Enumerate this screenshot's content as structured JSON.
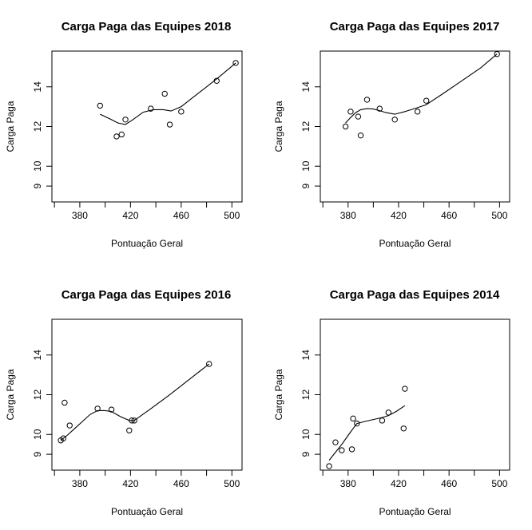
{
  "chart_data": [
    {
      "type": "scatter",
      "title": "Carga Paga das Equipes 2018",
      "xlabel": "Pontuação Geral",
      "ylabel": "Carga Paga",
      "xlim": [
        358,
        508
      ],
      "ylim": [
        8.2,
        15.8
      ],
      "xticks": [
        380,
        420,
        460,
        500
      ],
      "yticks": [
        9,
        10,
        12,
        14
      ],
      "points": [
        [
          396,
          13.05
        ],
        [
          409,
          11.5
        ],
        [
          413,
          11.6
        ],
        [
          416,
          12.35
        ],
        [
          436,
          12.9
        ],
        [
          447,
          13.65
        ],
        [
          451,
          12.1
        ],
        [
          460,
          12.75
        ],
        [
          488,
          14.3
        ],
        [
          503,
          15.2
        ]
      ],
      "smooth": [
        [
          396,
          12.62
        ],
        [
          404,
          12.38
        ],
        [
          410,
          12.18
        ],
        [
          416,
          12.1
        ],
        [
          422,
          12.35
        ],
        [
          430,
          12.72
        ],
        [
          438,
          12.85
        ],
        [
          446,
          12.85
        ],
        [
          452,
          12.78
        ],
        [
          460,
          13.0
        ],
        [
          470,
          13.5
        ],
        [
          480,
          14.0
        ],
        [
          490,
          14.5
        ],
        [
          503,
          15.2
        ]
      ]
    },
    {
      "type": "scatter",
      "title": "Carga Paga das Equipes 2017",
      "xlabel": "Pontuação Geral",
      "ylabel": "Carga Paga",
      "xlim": [
        358,
        508
      ],
      "ylim": [
        8.2,
        15.8
      ],
      "xticks": [
        380,
        420,
        460,
        500
      ],
      "yticks": [
        9,
        10,
        12,
        14
      ],
      "points": [
        [
          378,
          12.0
        ],
        [
          382,
          12.75
        ],
        [
          388,
          12.5
        ],
        [
          390,
          11.55
        ],
        [
          395,
          13.35
        ],
        [
          405,
          12.9
        ],
        [
          417,
          12.35
        ],
        [
          435,
          12.75
        ],
        [
          442,
          13.3
        ],
        [
          498,
          15.65
        ]
      ],
      "smooth": [
        [
          378,
          12.18
        ],
        [
          382,
          12.45
        ],
        [
          386,
          12.7
        ],
        [
          390,
          12.85
        ],
        [
          395,
          12.9
        ],
        [
          400,
          12.88
        ],
        [
          405,
          12.8
        ],
        [
          410,
          12.7
        ],
        [
          417,
          12.62
        ],
        [
          425,
          12.75
        ],
        [
          435,
          12.95
        ],
        [
          442,
          13.1
        ],
        [
          455,
          13.65
        ],
        [
          470,
          14.3
        ],
        [
          485,
          14.95
        ],
        [
          498,
          15.65
        ]
      ]
    },
    {
      "type": "scatter",
      "title": "Carga Paga das Equipes 2016",
      "xlabel": "Pontuação Geral",
      "ylabel": "Carga Paga",
      "xlim": [
        358,
        508
      ],
      "ylim": [
        8.2,
        15.8
      ],
      "xticks": [
        380,
        420,
        460,
        500
      ],
      "yticks": [
        9,
        10,
        12,
        14
      ],
      "points": [
        [
          365,
          9.7
        ],
        [
          367,
          9.8
        ],
        [
          368,
          11.6
        ],
        [
          372,
          10.45
        ],
        [
          394,
          11.3
        ],
        [
          405,
          11.25
        ],
        [
          419,
          10.2
        ],
        [
          421,
          10.7
        ],
        [
          423,
          10.7
        ],
        [
          482,
          13.55
        ]
      ],
      "smooth": [
        [
          365,
          9.7
        ],
        [
          370,
          9.95
        ],
        [
          376,
          10.3
        ],
        [
          382,
          10.65
        ],
        [
          388,
          11.0
        ],
        [
          394,
          11.2
        ],
        [
          400,
          11.2
        ],
        [
          405,
          11.15
        ],
        [
          412,
          10.9
        ],
        [
          419,
          10.7
        ],
        [
          423,
          10.7
        ],
        [
          435,
          11.25
        ],
        [
          450,
          11.95
        ],
        [
          465,
          12.7
        ],
        [
          482,
          13.55
        ]
      ]
    },
    {
      "type": "scatter",
      "title": "Carga Paga das Equipes 2014",
      "xlabel": "Pontuação Geral",
      "ylabel": "Carga Paga",
      "xlim": [
        358,
        508
      ],
      "ylim": [
        8.2,
        15.8
      ],
      "xticks": [
        380,
        420,
        460,
        500
      ],
      "yticks": [
        9,
        10,
        12,
        14
      ],
      "points": [
        [
          365,
          8.4
        ],
        [
          370,
          9.6
        ],
        [
          375,
          9.2
        ],
        [
          383,
          9.25
        ],
        [
          384,
          10.8
        ],
        [
          387,
          10.55
        ],
        [
          407,
          10.7
        ],
        [
          412,
          11.1
        ],
        [
          424,
          10.3
        ],
        [
          425,
          12.3
        ]
      ],
      "smooth": [
        [
          365,
          8.7
        ],
        [
          370,
          9.1
        ],
        [
          375,
          9.5
        ],
        [
          380,
          9.95
        ],
        [
          384,
          10.3
        ],
        [
          387,
          10.55
        ],
        [
          393,
          10.65
        ],
        [
          400,
          10.75
        ],
        [
          407,
          10.85
        ],
        [
          412,
          10.95
        ],
        [
          418,
          11.15
        ],
        [
          425,
          11.45
        ]
      ]
    }
  ]
}
